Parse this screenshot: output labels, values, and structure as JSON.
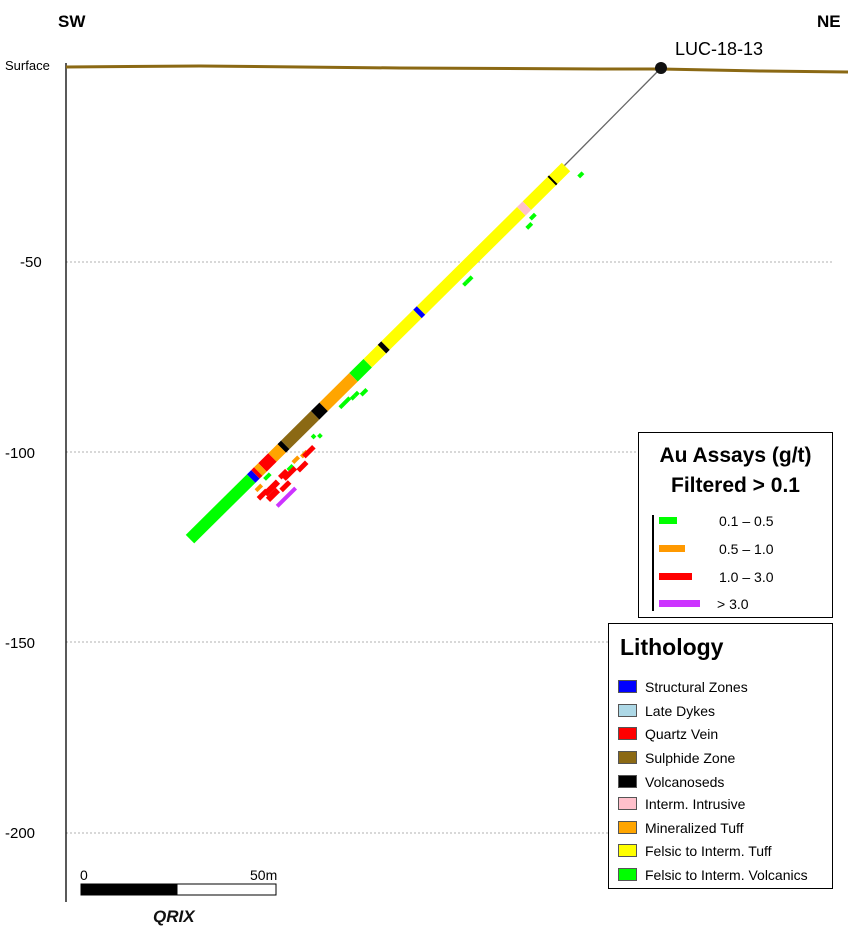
{
  "section": {
    "direction_left": "SW",
    "direction_right": "NE",
    "surface_label": "Surface",
    "hole_id": "LUC-18-13",
    "depth_ticks": [
      "-50",
      "-100",
      "-150",
      "-200"
    ],
    "scale_bar": {
      "start_label": "0",
      "end_label": "50m"
    },
    "logo_text": "QRIX"
  },
  "assay_legend": {
    "title_line1": "Au Assays (g/t)",
    "title_line2": "Filtered > 0.1",
    "items": [
      {
        "label": "0.1 – 0.5",
        "color": "#00ff00"
      },
      {
        "label": "0.5 – 1.0",
        "color": "#ff9900"
      },
      {
        "label": "1.0 – 3.0",
        "color": "#ff0000"
      },
      {
        "label": "> 3.0",
        "color": "#cc33ff"
      }
    ]
  },
  "lithology_legend": {
    "title": "Lithology",
    "items": [
      {
        "label": "Structural Zones",
        "color": "#0000ff"
      },
      {
        "label": "Late Dykes",
        "color": "#add8e6"
      },
      {
        "label": "Quartz Vein",
        "color": "#ff0000"
      },
      {
        "label": "Sulphide Zone",
        "color": "#8b6914"
      },
      {
        "label": "Volcanoseds",
        "color": "#000000"
      },
      {
        "label": "Interm. Intrusive",
        "color": "#ffc0cb"
      },
      {
        "label": "Mineralized Tuff",
        "color": "#ffa500"
      },
      {
        "label": "Felsic to Interm. Tuff",
        "color": "#ffff00"
      },
      {
        "label": "Felsic to Interm. Volcanics",
        "color": "#00ff00"
      }
    ]
  },
  "colors": {
    "surface": "#8b6914",
    "grid": "#b0b0b0"
  }
}
